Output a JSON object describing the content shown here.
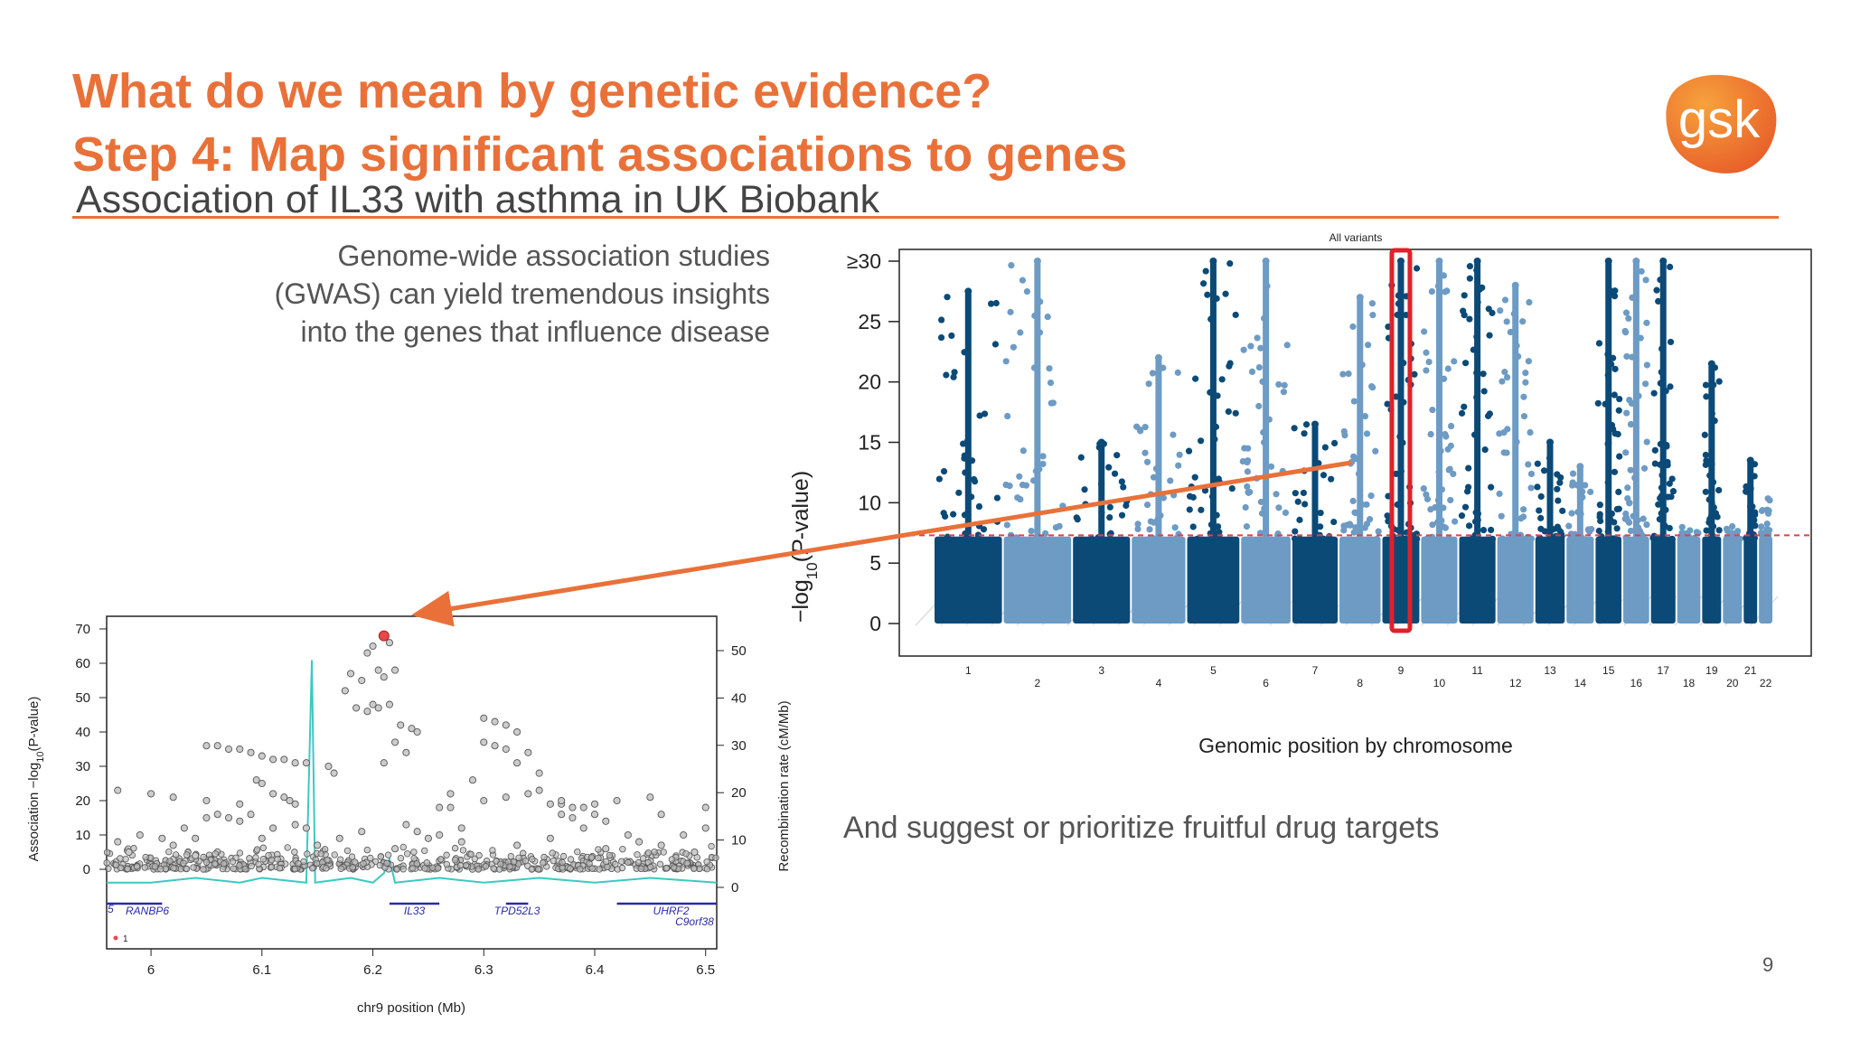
{
  "slide": {
    "title_line1": "What do we mean by genetic evidence?",
    "title_line2": "Step 4: Map significant associations to genes",
    "subtitle": "Association of IL33 with asthma in UK Biobank",
    "intro_lines": [
      "Genome-wide association studies",
      "(GWAS) can yield tremendous insights",
      "into the genes that influence disease"
    ],
    "suggest_text": "And suggest or prioritize fruitful drug targets",
    "page_number": "9",
    "logo_text": "gsk",
    "colors": {
      "accent": "#e97139",
      "dark_blue": "#0b4a77",
      "light_blue": "#6d9bc4",
      "highlight": "#e0202a",
      "recomb_line": "#3cc9c0"
    }
  },
  "chart_data": [
    {
      "type": "scatter",
      "title": "All variants",
      "xlabel": "Genomic position by chromosome",
      "ylabel": "−log10(P-value)",
      "ylim": [
        0,
        30
      ],
      "yticks": [
        "0",
        "5",
        "10",
        "15",
        "20",
        "25",
        "≥30"
      ],
      "threshold": 7.3,
      "highlight_chromosome": "9",
      "series": [
        {
          "x_labels": [
            "1",
            "2",
            "3",
            "4",
            "5",
            "6",
            "7",
            "8",
            "9",
            "10",
            "11",
            "12",
            "13",
            "14",
            "15",
            "16",
            "17",
            "18",
            "19",
            "20",
            "21",
            "22"
          ],
          "max_y": [
            27.5,
            30,
            15,
            22,
            30,
            30,
            16.5,
            27,
            30,
            30,
            30,
            28,
            15,
            13,
            30,
            30,
            30,
            8,
            21.5,
            8.5,
            13.5,
            10.5
          ]
        }
      ]
    },
    {
      "type": "scatter",
      "xlabel": "chr9 position (Mb)",
      "ylabel": "Association −log10(P-value)",
      "y2label": "Recombination rate (cM/Mb)",
      "xlim": [
        5.96,
        6.51
      ],
      "ylim": [
        0,
        70
      ],
      "y2lim": [
        0,
        50
      ],
      "x_ticks": [
        "6",
        "6.1",
        "6.2",
        "6.3",
        "6.4",
        "6.5"
      ],
      "y_ticks": [
        "0",
        "10",
        "20",
        "30",
        "40",
        "50",
        "60",
        "70"
      ],
      "y2_ticks": [
        "0",
        "10",
        "20",
        "30",
        "40",
        "50"
      ],
      "lead_variant": {
        "x": 6.21,
        "y": 68
      },
      "legend_text": "1",
      "points": [
        {
          "x": 6.195,
          "y": 63
        },
        {
          "x": 6.2,
          "y": 65
        },
        {
          "x": 6.205,
          "y": 58
        },
        {
          "x": 6.215,
          "y": 66
        },
        {
          "x": 6.22,
          "y": 58
        },
        {
          "x": 6.18,
          "y": 57
        },
        {
          "x": 6.21,
          "y": 56
        },
        {
          "x": 6.19,
          "y": 55
        },
        {
          "x": 6.175,
          "y": 52
        },
        {
          "x": 6.2,
          "y": 48
        },
        {
          "x": 6.185,
          "y": 47
        },
        {
          "x": 6.195,
          "y": 46
        },
        {
          "x": 6.205,
          "y": 47
        },
        {
          "x": 6.215,
          "y": 48
        },
        {
          "x": 6.225,
          "y": 42
        },
        {
          "x": 6.235,
          "y": 41
        },
        {
          "x": 6.24,
          "y": 40
        },
        {
          "x": 6.22,
          "y": 37
        },
        {
          "x": 6.23,
          "y": 34
        },
        {
          "x": 6.21,
          "y": 31
        },
        {
          "x": 6.16,
          "y": 30
        },
        {
          "x": 6.165,
          "y": 28
        },
        {
          "x": 6.05,
          "y": 36
        },
        {
          "x": 6.06,
          "y": 36
        },
        {
          "x": 6.07,
          "y": 35
        },
        {
          "x": 6.08,
          "y": 35
        },
        {
          "x": 6.09,
          "y": 34
        },
        {
          "x": 6.1,
          "y": 33
        },
        {
          "x": 6.11,
          "y": 32
        },
        {
          "x": 6.12,
          "y": 32
        },
        {
          "x": 6.13,
          "y": 31
        },
        {
          "x": 6.14,
          "y": 31
        },
        {
          "x": 6.095,
          "y": 26
        },
        {
          "x": 6.1,
          "y": 25
        },
        {
          "x": 6.11,
          "y": 22
        },
        {
          "x": 6.12,
          "y": 21
        },
        {
          "x": 6.125,
          "y": 20
        },
        {
          "x": 6.13,
          "y": 19
        },
        {
          "x": 6.05,
          "y": 15
        },
        {
          "x": 6.06,
          "y": 16
        },
        {
          "x": 6.07,
          "y": 15
        },
        {
          "x": 6.08,
          "y": 14
        },
        {
          "x": 6.09,
          "y": 16
        },
        {
          "x": 6.11,
          "y": 12
        },
        {
          "x": 6.13,
          "y": 13
        },
        {
          "x": 6.14,
          "y": 12
        },
        {
          "x": 6.1,
          "y": 9
        },
        {
          "x": 6.26,
          "y": 18
        },
        {
          "x": 6.27,
          "y": 18
        },
        {
          "x": 6.3,
          "y": 44
        },
        {
          "x": 6.31,
          "y": 43
        },
        {
          "x": 6.32,
          "y": 42
        },
        {
          "x": 6.33,
          "y": 40
        },
        {
          "x": 6.3,
          "y": 37
        },
        {
          "x": 6.31,
          "y": 36
        },
        {
          "x": 6.32,
          "y": 35
        },
        {
          "x": 6.34,
          "y": 34
        },
        {
          "x": 6.33,
          "y": 31
        },
        {
          "x": 6.35,
          "y": 28
        },
        {
          "x": 6.36,
          "y": 19
        },
        {
          "x": 6.37,
          "y": 19
        },
        {
          "x": 6.38,
          "y": 18
        },
        {
          "x": 6.39,
          "y": 18
        },
        {
          "x": 6.37,
          "y": 16
        },
        {
          "x": 6.38,
          "y": 15
        },
        {
          "x": 6.4,
          "y": 16
        },
        {
          "x": 6.41,
          "y": 14
        },
        {
          "x": 6.43,
          "y": 10
        },
        {
          "x": 6.44,
          "y": 8
        },
        {
          "x": 6.25,
          "y": 9
        },
        {
          "x": 6.28,
          "y": 12
        },
        {
          "x": 6.23,
          "y": 13
        },
        {
          "x": 6.24,
          "y": 11
        },
        {
          "x": 6.26,
          "y": 10
        },
        {
          "x": 6.29,
          "y": 26
        },
        {
          "x": 6.27,
          "y": 22
        },
        {
          "x": 6.3,
          "y": 20
        },
        {
          "x": 6.32,
          "y": 21
        },
        {
          "x": 6.34,
          "y": 22
        },
        {
          "x": 6.35,
          "y": 23
        },
        {
          "x": 6.37,
          "y": 20
        },
        {
          "x": 6.4,
          "y": 19
        },
        {
          "x": 6.42,
          "y": 20
        },
        {
          "x": 6.39,
          "y": 12
        },
        {
          "x": 6.45,
          "y": 21
        },
        {
          "x": 6.46,
          "y": 16
        },
        {
          "x": 6.48,
          "y": 10
        },
        {
          "x": 6.5,
          "y": 18
        },
        {
          "x": 6.5,
          "y": 12
        },
        {
          "x": 5.97,
          "y": 8
        },
        {
          "x": 5.98,
          "y": 5
        },
        {
          "x": 6.01,
          "y": 9
        },
        {
          "x": 6.02,
          "y": 7
        },
        {
          "x": 6.03,
          "y": 12
        },
        {
          "x": 6.04,
          "y": 9
        },
        {
          "x": 6.0,
          "y": 22
        },
        {
          "x": 6.02,
          "y": 21
        },
        {
          "x": 6.05,
          "y": 20
        },
        {
          "x": 6.08,
          "y": 19
        },
        {
          "x": 5.97,
          "y": 23
        },
        {
          "x": 5.99,
          "y": 10
        },
        {
          "x": 6.04,
          "y": 4
        },
        {
          "x": 6.15,
          "y": 7
        },
        {
          "x": 6.17,
          "y": 9
        },
        {
          "x": 6.19,
          "y": 11
        },
        {
          "x": 6.22,
          "y": 6
        },
        {
          "x": 6.28,
          "y": 8
        },
        {
          "x": 6.33,
          "y": 7
        },
        {
          "x": 6.36,
          "y": 9
        },
        {
          "x": 6.41,
          "y": 6
        },
        {
          "x": 6.46,
          "y": 7
        },
        {
          "x": 6.49,
          "y": 5
        }
      ],
      "recombination": [
        {
          "x": 5.96,
          "y": 1
        },
        {
          "x": 6.0,
          "y": 1
        },
        {
          "x": 6.04,
          "y": 2
        },
        {
          "x": 6.08,
          "y": 1
        },
        {
          "x": 6.1,
          "y": 2
        },
        {
          "x": 6.14,
          "y": 1
        },
        {
          "x": 6.145,
          "y": 48
        },
        {
          "x": 6.148,
          "y": 1
        },
        {
          "x": 6.18,
          "y": 2
        },
        {
          "x": 6.2,
          "y": 1
        },
        {
          "x": 6.21,
          "y": 3
        },
        {
          "x": 6.215,
          "y": 6
        },
        {
          "x": 6.22,
          "y": 1
        },
        {
          "x": 6.26,
          "y": 2
        },
        {
          "x": 6.3,
          "y": 1
        },
        {
          "x": 6.35,
          "y": 2
        },
        {
          "x": 6.4,
          "y": 1
        },
        {
          "x": 6.45,
          "y": 2
        },
        {
          "x": 6.51,
          "y": 1
        }
      ],
      "genes": [
        {
          "name": "RANBP6",
          "start": 5.96,
          "end": 6.01
        },
        {
          "name": "IL33",
          "start": 6.215,
          "end": 6.26
        },
        {
          "name": "TPD52L3",
          "start": 6.32,
          "end": 6.34
        },
        {
          "name": "UHRF2",
          "start": 6.42,
          "end": 6.51
        },
        {
          "name": "C9orf38",
          "start": 6.47,
          "end": 6.51
        }
      ],
      "gene_partial_label": "5"
    }
  ]
}
